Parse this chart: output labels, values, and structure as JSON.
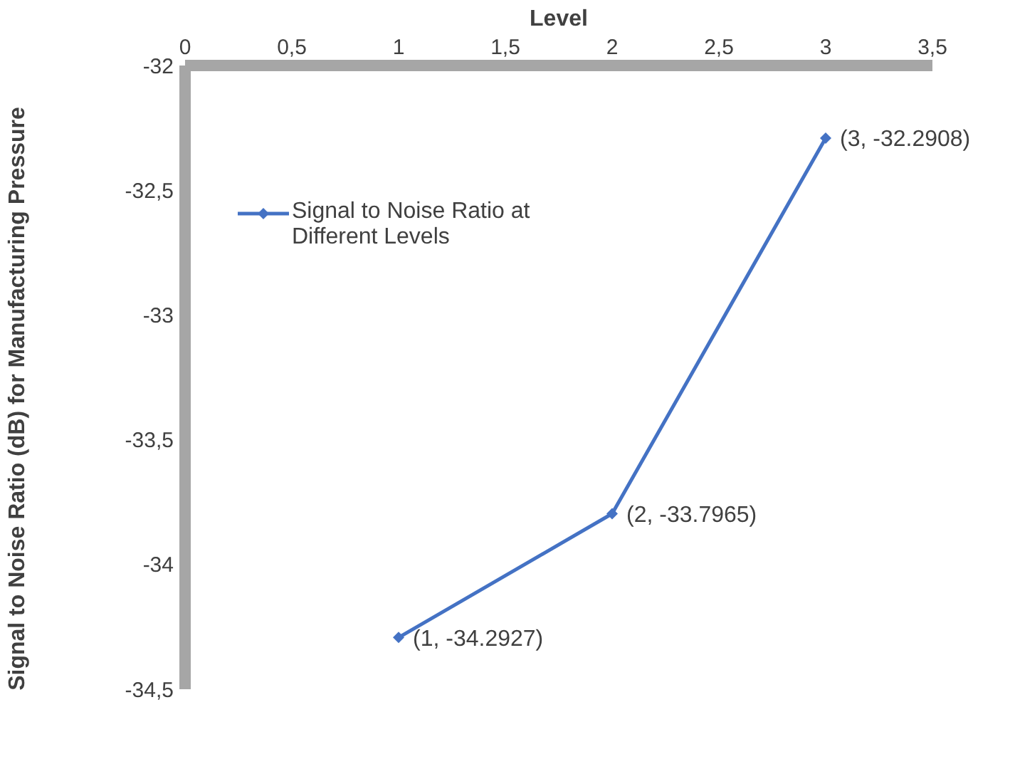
{
  "chart_data": {
    "type": "line",
    "xlabel": "Level",
    "ylabel": "Signal to Noise Ratio (dB) for Manufacturing Pressure",
    "x": [
      1,
      2,
      3
    ],
    "series": [
      {
        "name": "Signal to Noise Ratio at Different Levels",
        "color": "#4472c4",
        "values": [
          -34.2927,
          -33.7965,
          -32.2908
        ],
        "value_labels": [
          "(1, -34.2927)",
          "(2, -33.7965)",
          "(3, -32.2908)"
        ]
      }
    ],
    "xlim": [
      0,
      3.5
    ],
    "xticks": [
      0,
      {
        "value": 0.5,
        "label": "0,5"
      },
      1,
      {
        "value": 1.5,
        "label": "1,5"
      },
      2,
      {
        "value": 2.5,
        "label": "2,5"
      },
      3,
      {
        "value": 3.5,
        "label": "3,5"
      }
    ],
    "ylim": [
      -34.5,
      -32
    ],
    "yticks": [
      {
        "value": -34.5,
        "label": "-34,5"
      },
      -34,
      {
        "value": -33.5,
        "label": "-33,5"
      },
      -33,
      {
        "value": -32.5,
        "label": "-32,5"
      },
      -32
    ],
    "grid": false,
    "legend": "top left",
    "marker": "diamond",
    "line_style": "solid"
  }
}
